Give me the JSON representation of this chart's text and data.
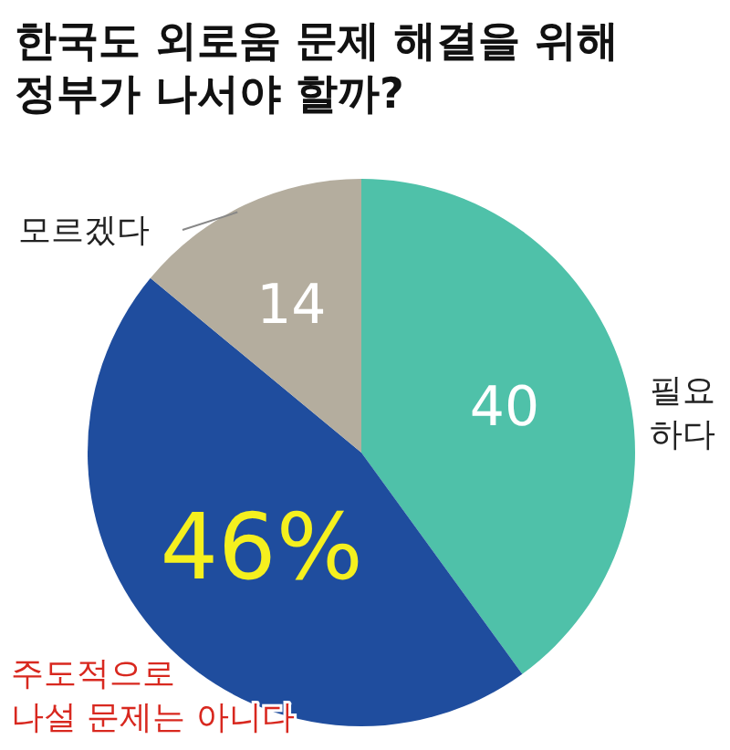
{
  "chart_data": {
    "type": "pie",
    "title": "한국도 외로움 문제 해결을 위해\n정부가 나서야 할까?",
    "categories": [
      "필요\n하다",
      "주도적으로\n나설 문제는 아니다",
      "모르겠다"
    ],
    "values": [
      40,
      46,
      14
    ],
    "colors": [
      "#4fc1a9",
      "#1f4d9e",
      "#b4ad9e"
    ],
    "value_labels": [
      "40",
      "46%",
      "14"
    ]
  }
}
